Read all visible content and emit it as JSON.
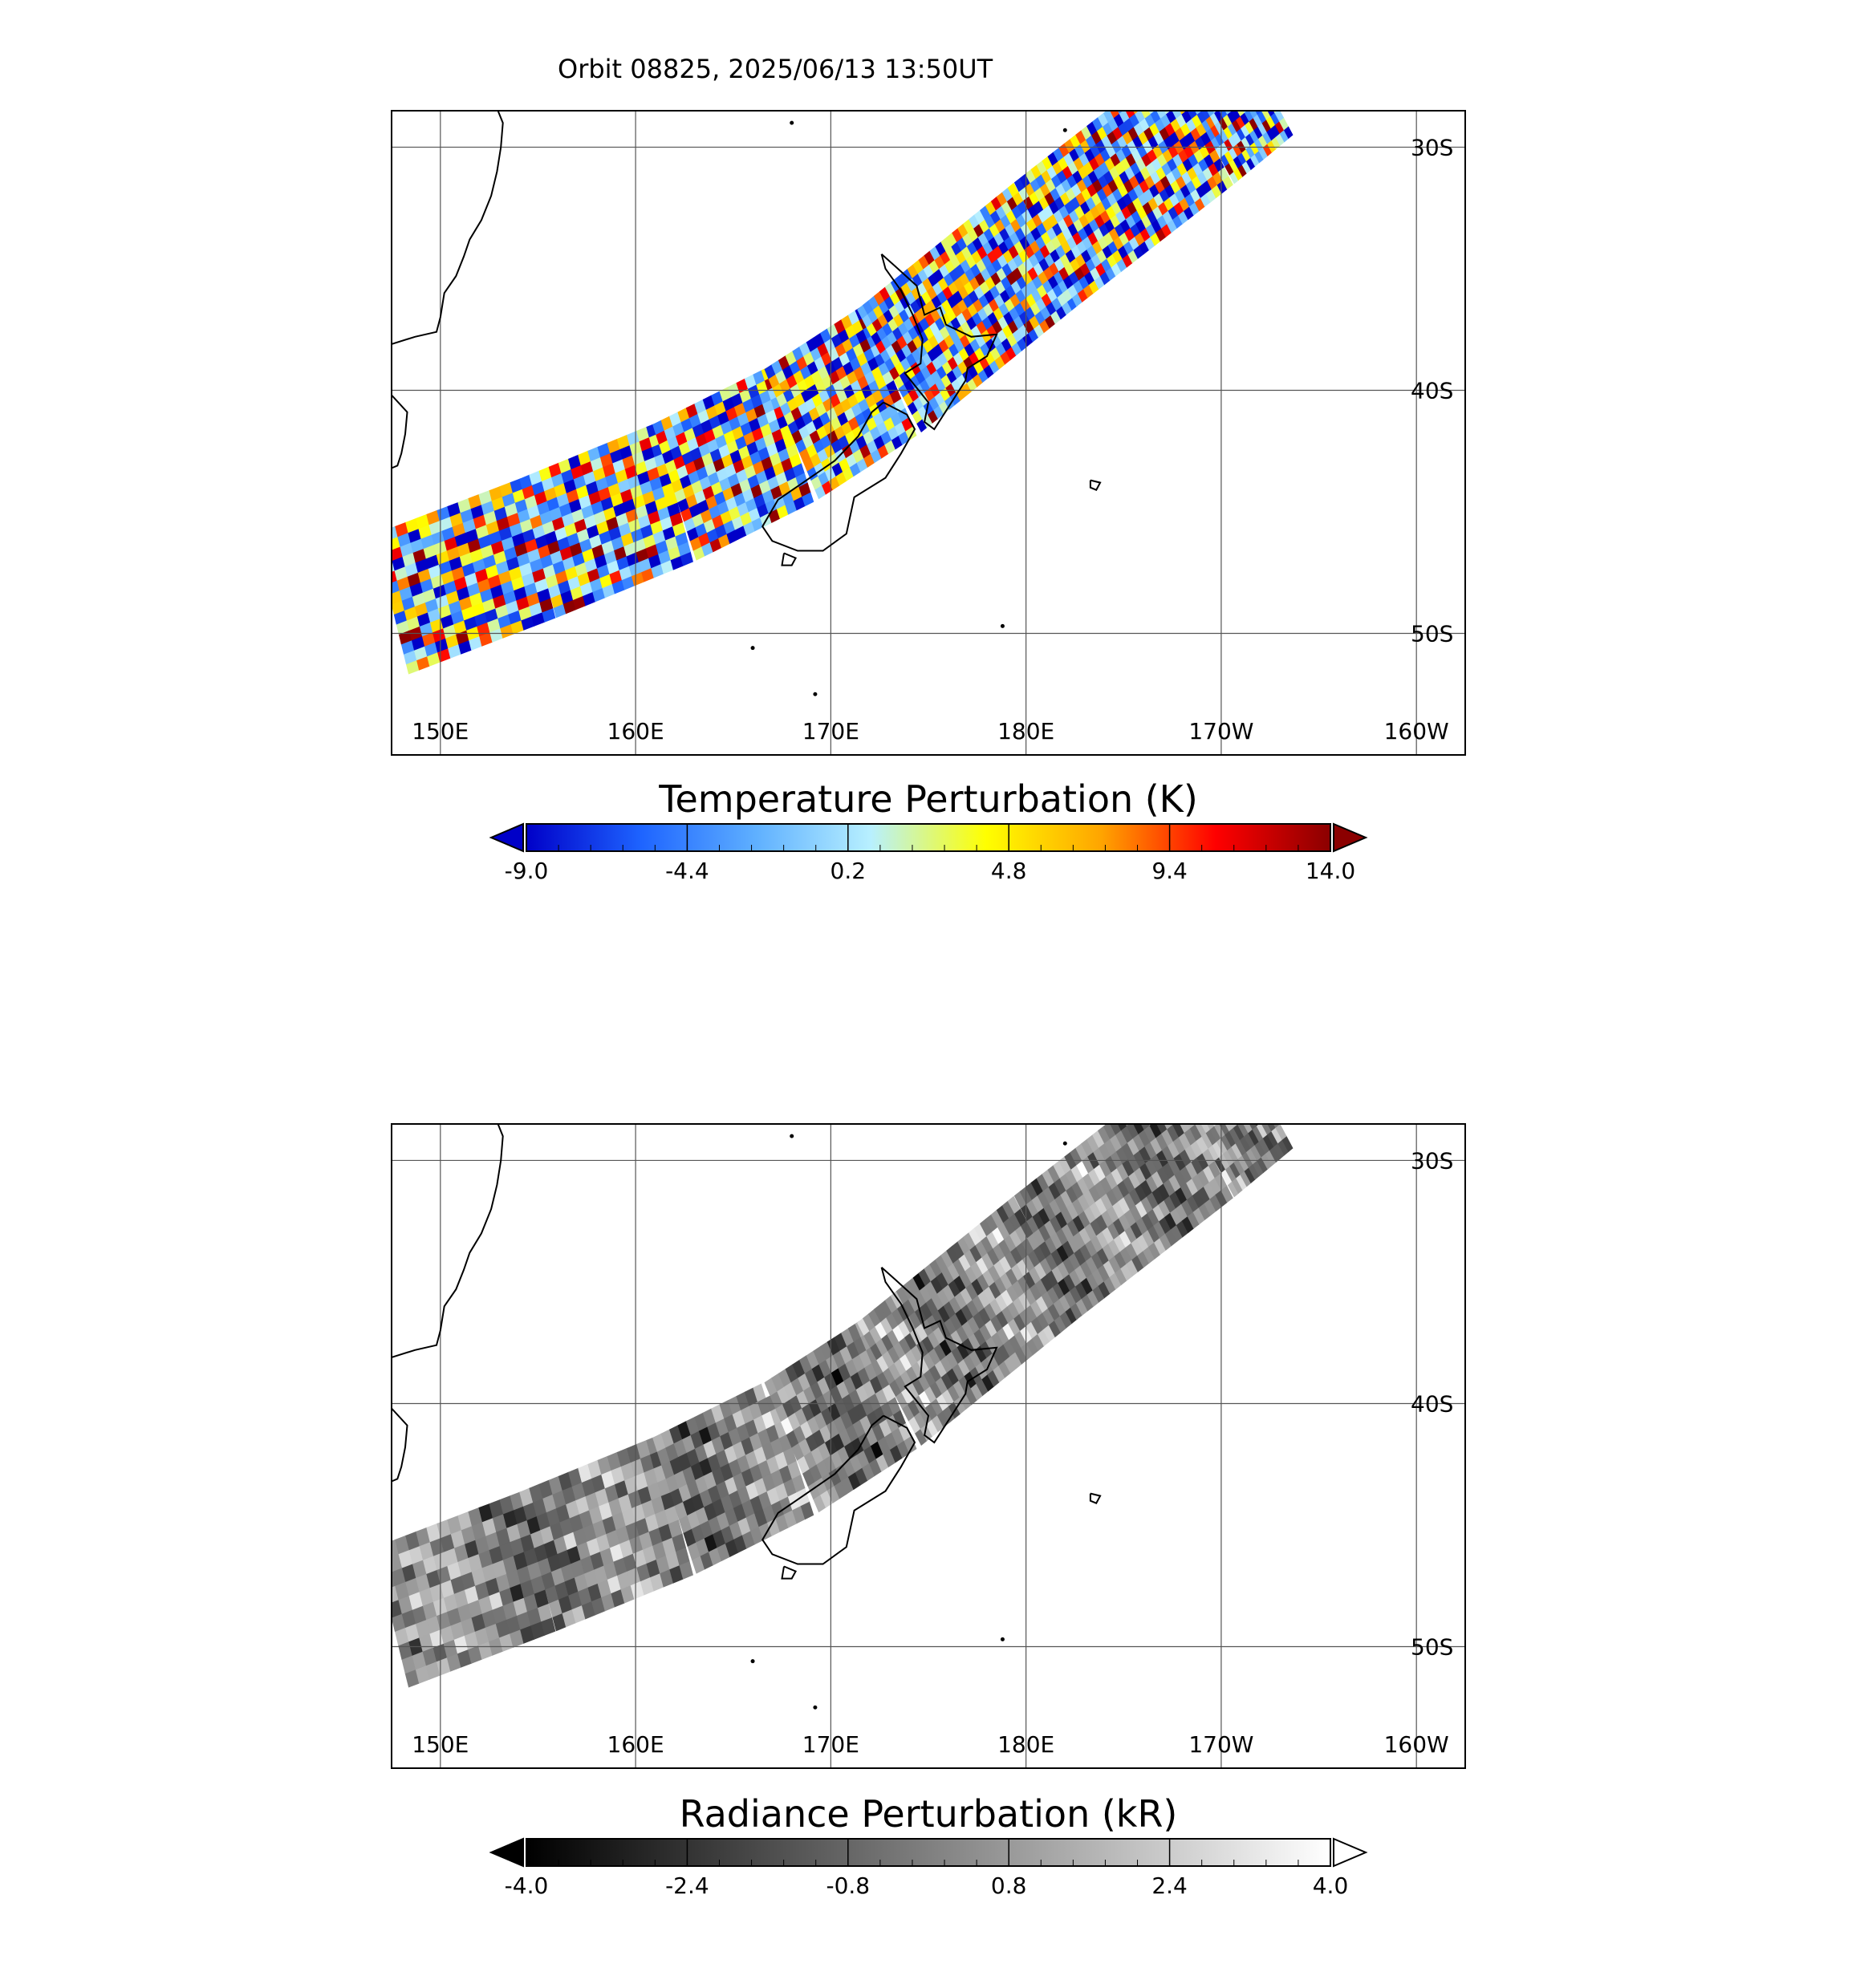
{
  "header": {
    "title": "Orbit 08825, 2025/06/13 13:50UT"
  },
  "map": {
    "projection": "cylindrical",
    "lon_range_east": [
      147.5,
      202.5
    ],
    "lat_range": [
      -55.0,
      -28.5
    ],
    "lon_gridlines_east": [
      150,
      160,
      170,
      180,
      190,
      200
    ],
    "lat_gridlines": [
      -30,
      -40,
      -50
    ],
    "lon_labels": [
      "150E",
      "160E",
      "170E",
      "180E",
      "170W",
      "160W"
    ],
    "lat_labels": [
      "30S",
      "40S",
      "50S"
    ]
  },
  "panels": [
    {
      "id": "temperature",
      "colorbar": {
        "title": "Temperature Perturbation (K)",
        "min": -9.0,
        "max": 14.0,
        "tick_labels": [
          "-9.0",
          "-4.4",
          "0.2",
          "4.8",
          "9.4",
          "14.0"
        ],
        "extend": "both",
        "stops": [
          "#0000c8",
          "#1e64ff",
          "#5fb0ff",
          "#b8f0ff",
          "#ffff00",
          "#ffa500",
          "#ff0000",
          "#8b0000"
        ],
        "under_color": "#0000c8",
        "over_color": "#8b0000"
      }
    },
    {
      "id": "radiance",
      "colorbar": {
        "title": "Radiance Perturbation (kR)",
        "min": -4.0,
        "max": 4.0,
        "tick_labels": [
          "-4.0",
          "-2.4",
          "-0.8",
          "0.8",
          "2.4",
          "4.0"
        ],
        "extend": "both",
        "stops": [
          "#000000",
          "#ffffff"
        ],
        "under_color": "#000000",
        "over_color": "#ffffff"
      }
    }
  ],
  "swath": {
    "centerline": [
      [
        147.5,
        -48.8
      ],
      [
        155,
        -46.5
      ],
      [
        162,
        -44.2
      ],
      [
        168,
        -41.8
      ],
      [
        173,
        -39.2
      ],
      [
        177,
        -36.6
      ],
      [
        181,
        -34
      ],
      [
        185,
        -31.5
      ],
      [
        189,
        -29
      ],
      [
        192,
        -27
      ]
    ],
    "half_width_deg": 3.0
  },
  "coastlines": {
    "australia": [
      [
        152.8,
        -28.2
      ],
      [
        153.2,
        -29
      ],
      [
        153.1,
        -30
      ],
      [
        152.9,
        -31
      ],
      [
        152.6,
        -32
      ],
      [
        152.1,
        -33
      ],
      [
        151.5,
        -33.8
      ],
      [
        151.2,
        -34.5
      ],
      [
        150.8,
        -35.3
      ],
      [
        150.2,
        -36
      ],
      [
        150.0,
        -37
      ],
      [
        149.8,
        -37.6
      ],
      [
        148.7,
        -37.8
      ],
      [
        147.5,
        -38.1
      ]
    ],
    "tasmania": [
      [
        147.5,
        -40.2
      ],
      [
        148.3,
        -40.9
      ],
      [
        148.2,
        -41.8
      ],
      [
        148.0,
        -42.6
      ],
      [
        147.8,
        -43.1
      ],
      [
        147.5,
        -43.2
      ]
    ],
    "new_zealand_north": [
      [
        172.6,
        -34.4
      ],
      [
        173.3,
        -34.9
      ],
      [
        174.4,
        -35.7
      ],
      [
        174.8,
        -36.9
      ],
      [
        175.6,
        -36.6
      ],
      [
        175.9,
        -37.3
      ],
      [
        177.2,
        -37.8
      ],
      [
        178.5,
        -37.7
      ],
      [
        178.0,
        -38.6
      ],
      [
        177.0,
        -39.1
      ],
      [
        176.9,
        -39.6
      ],
      [
        176.1,
        -40.6
      ],
      [
        175.3,
        -41.6
      ],
      [
        174.8,
        -41.3
      ],
      [
        175.0,
        -40.5
      ],
      [
        174.4,
        -39.9
      ],
      [
        173.8,
        -39.3
      ],
      [
        174.6,
        -38.9
      ],
      [
        174.7,
        -37.9
      ],
      [
        174.2,
        -36.9
      ],
      [
        173.6,
        -35.9
      ],
      [
        172.8,
        -35.0
      ],
      [
        172.6,
        -34.4
      ]
    ],
    "new_zealand_south": [
      [
        172.7,
        -40.5
      ],
      [
        173.9,
        -41.0
      ],
      [
        174.3,
        -41.6
      ],
      [
        173.6,
        -42.6
      ],
      [
        172.8,
        -43.6
      ],
      [
        171.2,
        -44.4
      ],
      [
        170.8,
        -45.9
      ],
      [
        169.6,
        -46.6
      ],
      [
        168.3,
        -46.6
      ],
      [
        167.0,
        -46.2
      ],
      [
        166.5,
        -45.6
      ],
      [
        167.3,
        -44.5
      ],
      [
        168.4,
        -43.9
      ],
      [
        170.2,
        -42.9
      ],
      [
        171.4,
        -41.9
      ],
      [
        172.1,
        -40.9
      ],
      [
        172.7,
        -40.5
      ]
    ],
    "stewart_island": [
      [
        167.6,
        -46.7
      ],
      [
        168.2,
        -46.9
      ],
      [
        168.0,
        -47.2
      ],
      [
        167.5,
        -47.2
      ],
      [
        167.6,
        -46.7
      ]
    ],
    "chatham_islands": [
      [
        183.3,
        -43.7
      ],
      [
        183.8,
        -43.8
      ],
      [
        183.6,
        -44.1
      ],
      [
        183.3,
        -44.0
      ],
      [
        183.3,
        -43.7
      ]
    ]
  },
  "islands_points": [
    [
      168.0,
      -29.0
    ],
    [
      182.0,
      -29.3
    ],
    [
      178.8,
      -49.7
    ],
    [
      166.0,
      -50.6
    ],
    [
      169.2,
      -52.5
    ]
  ],
  "colors": {
    "grid": "#555555",
    "coast": "#000000",
    "frame": "#000000"
  }
}
